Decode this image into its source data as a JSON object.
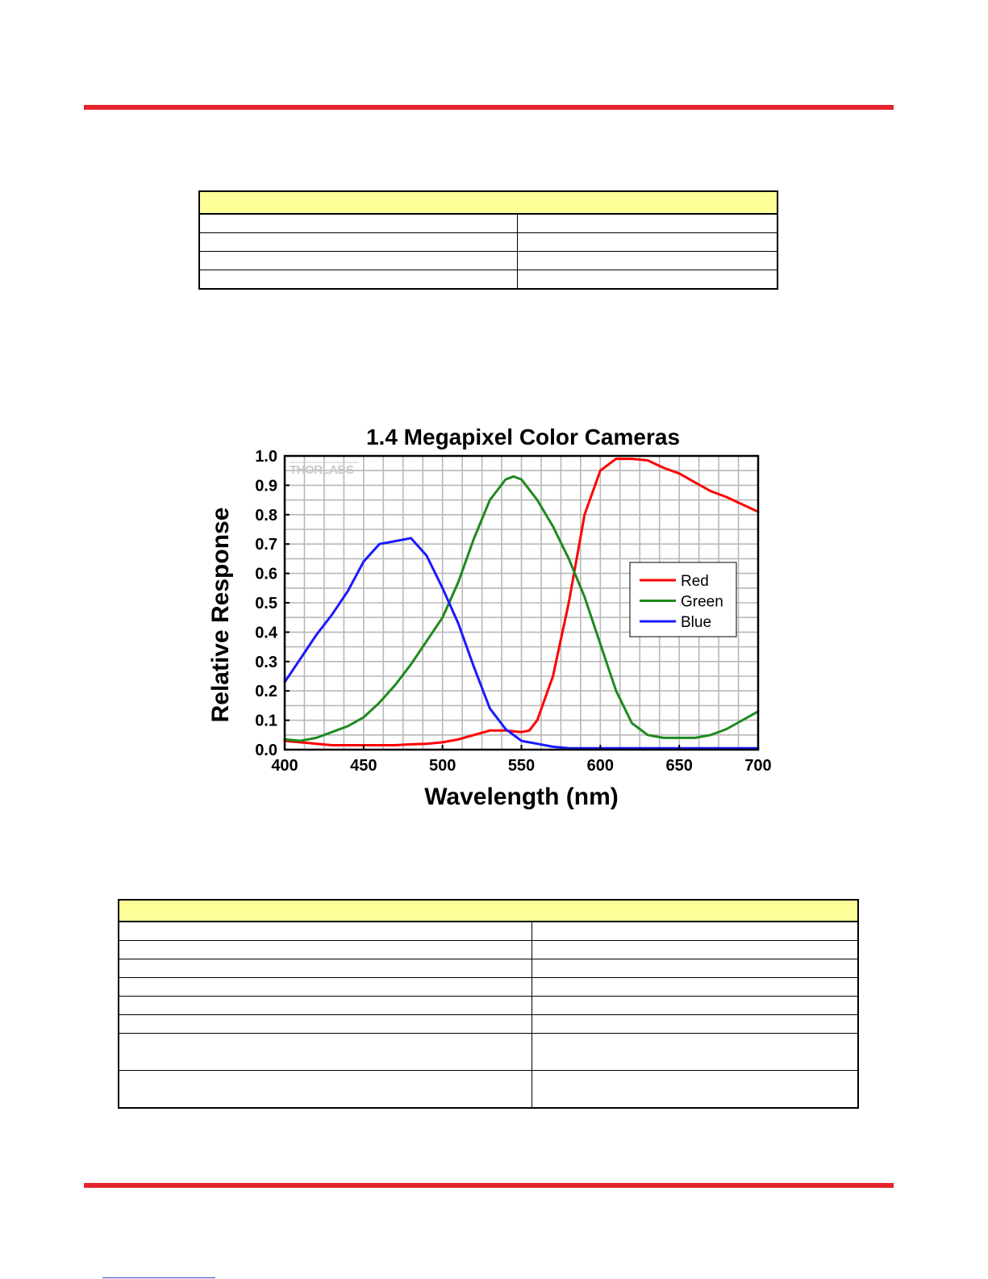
{
  "tables": {
    "table1": {
      "header": "",
      "rows": [
        [
          "",
          ""
        ],
        [
          "",
          ""
        ],
        [
          "",
          ""
        ],
        [
          "",
          ""
        ]
      ]
    },
    "table2": {
      "header": "",
      "rows": [
        [
          "",
          ""
        ],
        [
          "",
          ""
        ],
        [
          "",
          ""
        ],
        [
          "",
          ""
        ],
        [
          "",
          ""
        ],
        [
          "",
          ""
        ],
        [
          "",
          ""
        ],
        [
          "",
          ""
        ]
      ]
    }
  },
  "chart_data": {
    "type": "line",
    "title": "1.4 Megapixel Color Cameras",
    "xlabel": "Wavelength (nm)",
    "ylabel": "Relative Response",
    "watermark": "THORLABS",
    "xlim": [
      400,
      700
    ],
    "ylim": [
      0.0,
      1.0
    ],
    "xticks": [
      "400",
      "450",
      "500",
      "550",
      "600",
      "650",
      "700"
    ],
    "yticks": [
      "0.0",
      "0.1",
      "0.2",
      "0.3",
      "0.4",
      "0.5",
      "0.6",
      "0.7",
      "0.8",
      "0.9",
      "1.0"
    ],
    "grid": true,
    "legend_position": "right",
    "series": [
      {
        "name": "Red",
        "color": "#ff0000",
        "x": [
          400,
          410,
          420,
          430,
          440,
          450,
          460,
          470,
          480,
          490,
          500,
          510,
          520,
          530,
          540,
          550,
          555,
          560,
          570,
          580,
          585,
          590,
          600,
          610,
          620,
          630,
          640,
          650,
          660,
          670,
          680,
          690,
          700
        ],
        "y": [
          0.03,
          0.025,
          0.02,
          0.015,
          0.015,
          0.015,
          0.015,
          0.015,
          0.018,
          0.02,
          0.025,
          0.035,
          0.05,
          0.065,
          0.065,
          0.06,
          0.065,
          0.1,
          0.25,
          0.5,
          0.65,
          0.8,
          0.95,
          0.99,
          0.99,
          0.985,
          0.96,
          0.94,
          0.91,
          0.88,
          0.86,
          0.835,
          0.81
        ]
      },
      {
        "name": "Green",
        "color": "#1e8a1e",
        "x": [
          400,
          410,
          420,
          430,
          440,
          450,
          460,
          470,
          480,
          490,
          500,
          510,
          520,
          530,
          540,
          545,
          550,
          560,
          570,
          580,
          590,
          600,
          610,
          620,
          630,
          640,
          650,
          660,
          670,
          680,
          690,
          700
        ],
        "y": [
          0.035,
          0.03,
          0.04,
          0.06,
          0.08,
          0.11,
          0.16,
          0.22,
          0.29,
          0.37,
          0.45,
          0.57,
          0.72,
          0.85,
          0.92,
          0.93,
          0.92,
          0.85,
          0.76,
          0.65,
          0.52,
          0.36,
          0.2,
          0.09,
          0.05,
          0.04,
          0.04,
          0.04,
          0.05,
          0.07,
          0.1,
          0.13
        ]
      },
      {
        "name": "Blue",
        "color": "#1a1aff",
        "x": [
          400,
          410,
          420,
          430,
          440,
          450,
          460,
          470,
          480,
          490,
          500,
          510,
          520,
          530,
          540,
          550,
          560,
          570,
          580,
          590,
          600,
          650,
          700
        ],
        "y": [
          0.23,
          0.31,
          0.39,
          0.46,
          0.54,
          0.64,
          0.7,
          0.71,
          0.72,
          0.66,
          0.55,
          0.43,
          0.28,
          0.14,
          0.07,
          0.03,
          0.02,
          0.01,
          0.005,
          0.005,
          0.005,
          0.005,
          0.005
        ]
      }
    ]
  }
}
